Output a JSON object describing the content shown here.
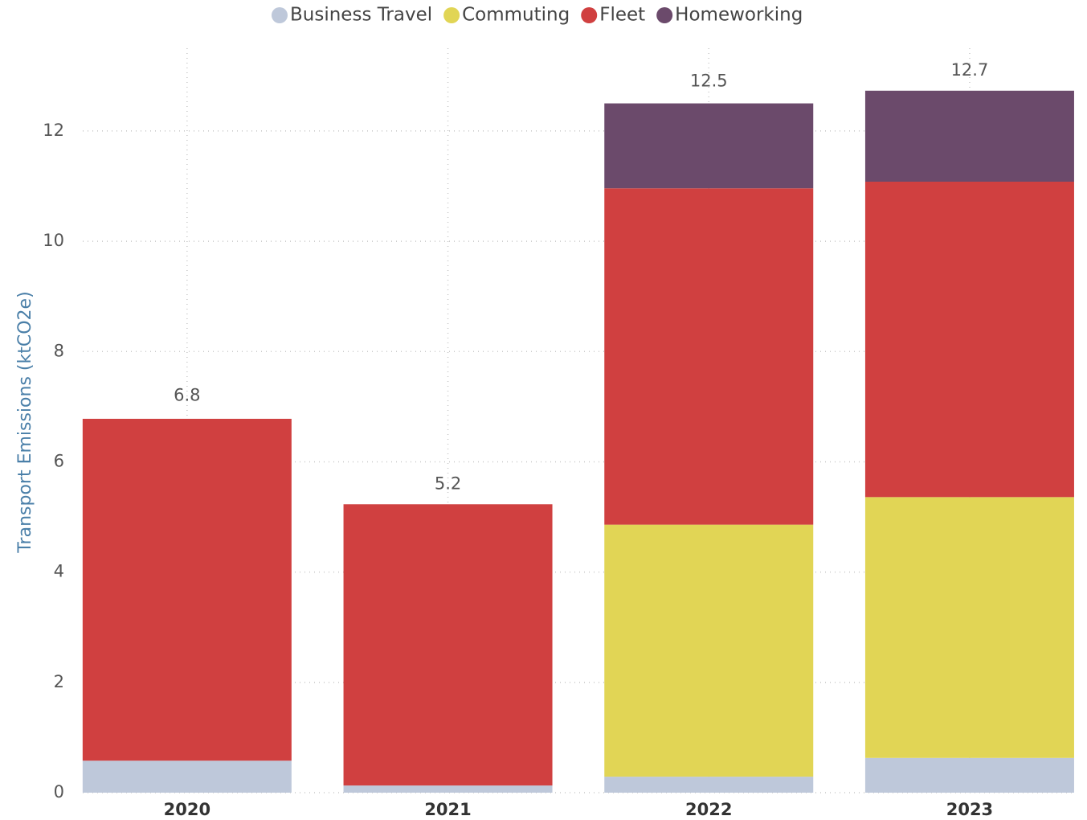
{
  "chart_data": {
    "type": "stacked_bar",
    "y_label": "Transport Emissions (ktCO2e)",
    "categories": [
      "2020",
      "2021",
      "2022",
      "2023"
    ],
    "series": [
      {
        "name": "Business Travel",
        "color": "#bec8da",
        "values": [
          0.58,
          0.13,
          0.29,
          0.63
        ]
      },
      {
        "name": "Commuting",
        "color": "#e1d555",
        "values": [
          0,
          0,
          4.57,
          4.73
        ]
      },
      {
        "name": "Fleet",
        "color": "#d04040",
        "values": [
          6.2,
          5.1,
          6.1,
          5.72
        ]
      },
      {
        "name": "Homeworking",
        "color": "#6b4a6b",
        "values": [
          0,
          0,
          1.54,
          1.65
        ]
      }
    ],
    "totals": [
      6.8,
      5.2,
      12.5,
      12.7
    ],
    "ylim": [
      0,
      13.5
    ],
    "yticks": [
      0,
      2,
      4,
      6,
      8,
      10,
      12
    ],
    "grid": true
  }
}
